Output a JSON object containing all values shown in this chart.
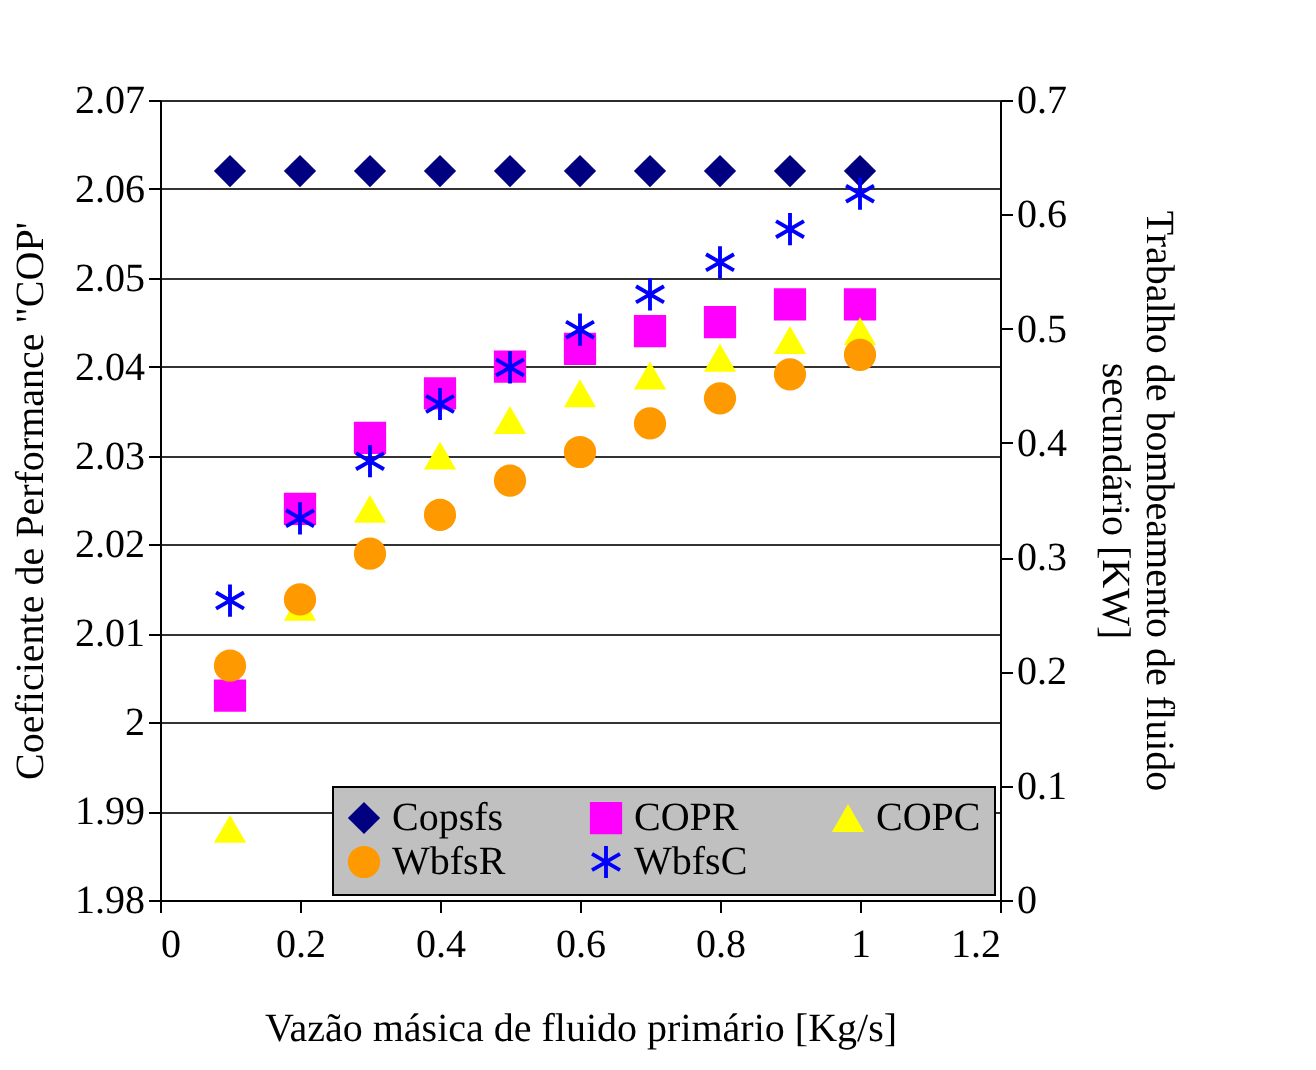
{
  "chart_data": {
    "type": "scatter",
    "xlabel": "Vazão másica de fluido primário [Kg/s]",
    "ylabel": "Coeficiente de Performance \"COP'",
    "y2label": "Trabalho de bombeamento de fluido secundário [KW]",
    "x": [
      0.1,
      0.2,
      0.3,
      0.4,
      0.5,
      0.6,
      0.7,
      0.8,
      0.9,
      1.0
    ],
    "xlim": [
      0,
      1.2
    ],
    "xticks": [
      0,
      0.2,
      0.4,
      0.6,
      0.8,
      1,
      1.2
    ],
    "ylim": [
      1.98,
      2.07
    ],
    "yticks": [
      1.98,
      1.99,
      2,
      2.01,
      2.02,
      2.03,
      2.04,
      2.05,
      2.06,
      2.07
    ],
    "y2lim": [
      0,
      0.7
    ],
    "y2ticks": [
      0,
      0.1,
      0.2,
      0.3,
      0.4,
      0.5,
      0.6,
      0.7
    ],
    "grid": "y",
    "legend": "bottom right",
    "series": [
      {
        "name": "Copsfs",
        "color": "#000080",
        "marker": "diamond",
        "values": [
          2.062,
          2.062,
          2.062,
          2.062,
          2.062,
          2.062,
          2.062,
          2.062,
          2.062,
          2.062
        ]
      },
      {
        "name": "COPR",
        "color": "#ff00ff",
        "marker": "square",
        "values": [
          2.003,
          2.024,
          2.032,
          2.037,
          2.04,
          2.042,
          2.044,
          2.045,
          2.047,
          2.047
        ]
      },
      {
        "name": "COPC",
        "color": "#ffff00",
        "marker": "triangle",
        "values": [
          1.988,
          2.013,
          2.024,
          2.03,
          2.034,
          2.037,
          2.039,
          2.041,
          2.043,
          2.044
        ]
      },
      {
        "name": "WbfsR",
        "color": "#ff9900",
        "marker": "circle",
        "axis": "y2",
        "values": [
          0.205,
          0.263,
          0.303,
          0.337,
          0.367,
          0.392,
          0.417,
          0.439,
          0.46,
          0.477
        ]
      },
      {
        "name": "WbfsC",
        "color": "#0000ff",
        "marker": "cross",
        "axis": "y2",
        "values": [
          0.262,
          0.334,
          0.384,
          0.434,
          0.466,
          0.499,
          0.53,
          0.558,
          0.587,
          0.618
        ]
      }
    ]
  }
}
